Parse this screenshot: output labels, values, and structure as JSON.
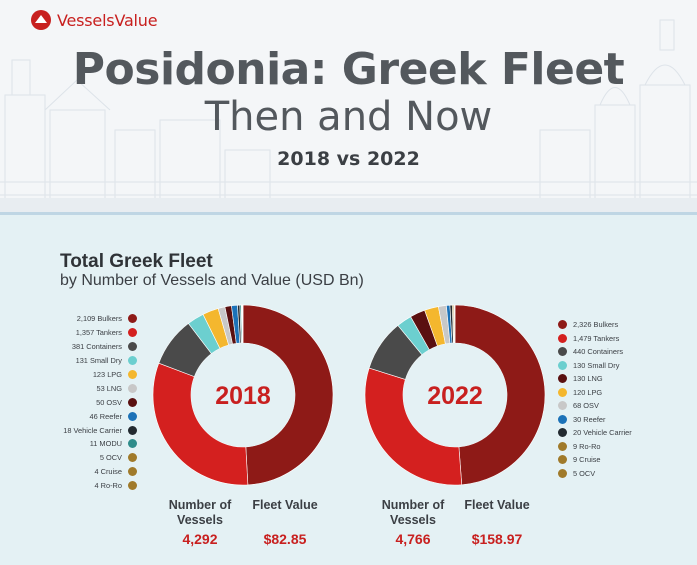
{
  "brand": {
    "name": "VesselsValue"
  },
  "header": {
    "title": "Posidonia: Greek Fleet",
    "subtitle": "Then and Now",
    "comparison": "2018 vs 2022"
  },
  "section": {
    "title": "Total Greek Fleet",
    "subtitle": "by Number of Vessels and Value (USD Bn)"
  },
  "chart_data": [
    {
      "type": "pie",
      "variant": "donut",
      "center_label": "2018",
      "legend_position": "left",
      "slices": [
        {
          "label": "2,109 Bulkers",
          "value": 2109,
          "color": "#8e1a17"
        },
        {
          "label": "1,357 Tankers",
          "value": 1357,
          "color": "#d4201f"
        },
        {
          "label": "381 Containers",
          "value": 381,
          "color": "#4a4a4a"
        },
        {
          "label": "131 Small Dry",
          "value": 131,
          "color": "#6ccfcf"
        },
        {
          "label": "123 LPG",
          "value": 123,
          "color": "#f4b72e"
        },
        {
          "label": "53 LNG",
          "value": 53,
          "color": "#c8c8c8"
        },
        {
          "label": "50 OSV",
          "value": 50,
          "color": "#5a1010"
        },
        {
          "label": "46 Reefer",
          "value": 46,
          "color": "#1c72b8"
        },
        {
          "label": "18 Vehicle Carrier",
          "value": 18,
          "color": "#232a30"
        },
        {
          "label": "11 MODU",
          "value": 11,
          "color": "#2f8c8a"
        },
        {
          "label": "5 OCV",
          "value": 5,
          "color": "#a07a2a"
        },
        {
          "label": "4 Cruise",
          "value": 4,
          "color": "#a07a2a"
        },
        {
          "label": "4 Ro-Ro",
          "value": 4,
          "color": "#a07a2a"
        }
      ],
      "stats": {
        "vessels_label": "Number of Vessels",
        "vessels_value": "4,292",
        "value_label": "Fleet Value",
        "value_value": "$82.85"
      }
    },
    {
      "type": "pie",
      "variant": "donut",
      "center_label": "2022",
      "legend_position": "right",
      "slices": [
        {
          "label": "2,326 Bulkers",
          "value": 2326,
          "color": "#8e1a17"
        },
        {
          "label": "1,479 Tankers",
          "value": 1479,
          "color": "#d4201f"
        },
        {
          "label": "440 Containers",
          "value": 440,
          "color": "#4a4a4a"
        },
        {
          "label": "130 Small Dry",
          "value": 130,
          "color": "#6ccfcf"
        },
        {
          "label": "130 LNG",
          "value": 130,
          "color": "#5a1010"
        },
        {
          "label": "120 LPG",
          "value": 120,
          "color": "#f4b72e"
        },
        {
          "label": "68 OSV",
          "value": 68,
          "color": "#c8c8c8"
        },
        {
          "label": "30 Reefer",
          "value": 30,
          "color": "#1c72b8"
        },
        {
          "label": "20 Vehicle Carrier",
          "value": 20,
          "color": "#232a30"
        },
        {
          "label": "9 Ro-Ro",
          "value": 9,
          "color": "#a07a2a"
        },
        {
          "label": "9 Cruise",
          "value": 9,
          "color": "#a07a2a"
        },
        {
          "label": "5 OCV",
          "value": 5,
          "color": "#a07a2a"
        }
      ],
      "stats": {
        "vessels_label": "Number of Vessels",
        "vessels_value": "4,766",
        "value_label": "Fleet Value",
        "value_value": "$158.97"
      }
    }
  ]
}
